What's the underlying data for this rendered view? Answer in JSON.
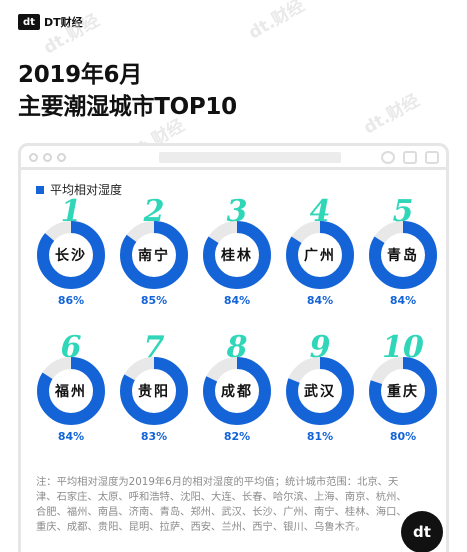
{
  "brand": {
    "mark": "dt",
    "name": "DT财经"
  },
  "watermark": "dt.财经",
  "title_line1": "2019年6月",
  "title_line2": "主要潮湿城市TOP10",
  "chart_data": {
    "type": "donut",
    "legend": "平均相对湿度",
    "colors": {
      "fill": "#1464d8",
      "track": "#e8e8e8",
      "rank": "#2fd6b8"
    },
    "items": [
      {
        "rank": "1",
        "city": "长沙",
        "value": 86,
        "label": "86%"
      },
      {
        "rank": "2",
        "city": "南宁",
        "value": 85,
        "label": "85%"
      },
      {
        "rank": "3",
        "city": "桂林",
        "value": 84,
        "label": "84%"
      },
      {
        "rank": "4",
        "city": "广州",
        "value": 84,
        "label": "84%"
      },
      {
        "rank": "5",
        "city": "青岛",
        "value": 84,
        "label": "84%"
      },
      {
        "rank": "6",
        "city": "福州",
        "value": 84,
        "label": "84%"
      },
      {
        "rank": "7",
        "city": "贵阳",
        "value": 83,
        "label": "83%"
      },
      {
        "rank": "8",
        "city": "成都",
        "value": 82,
        "label": "82%"
      },
      {
        "rank": "9",
        "city": "武汉",
        "value": 81,
        "label": "81%"
      },
      {
        "rank": "10",
        "city": "重庆",
        "value": 80,
        "label": "80%"
      }
    ]
  },
  "note": "注：平均相对湿度为2019年6月的相对湿度的平均值；统计城市范围：北京、天津、石家庄、太原、呼和浩特、沈阳、大连、长春、哈尔滨、上海、南京、杭州、合肥、福州、南昌、济南、青岛、郑州、武汉、长沙、广州、南宁、桂林、海口、重庆、成都、贵阳、昆明、拉萨、西安、兰州、西宁、银川、乌鲁木齐。"
}
